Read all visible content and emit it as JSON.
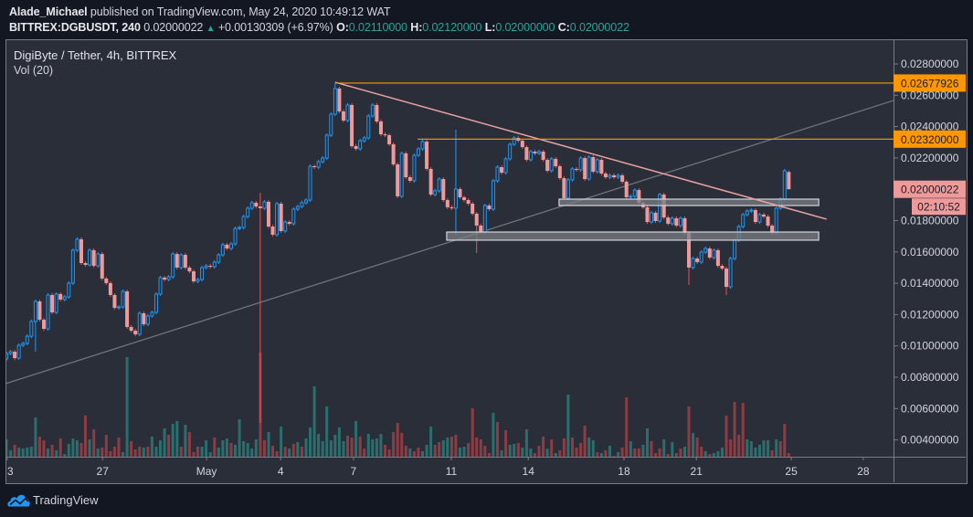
{
  "header": {
    "author": "Alade_Michael",
    "published": " published on TradingView.com, May 24, 2020 10:49:12 WAT",
    "symbol": "BITTREX:DGBUSDT, 240",
    "last": "0.02000022",
    "change_arrow": "▲",
    "change_icon": "triangle-up-icon",
    "change": "+0.00130309 (+6.97%)",
    "ohlc": [
      {
        "label": "O:",
        "value": "0.02110000"
      },
      {
        "label": "H:",
        "value": "0.02120000"
      },
      {
        "label": "L:",
        "value": "0.02000000"
      },
      {
        "label": "C:",
        "value": "0.02000022"
      }
    ]
  },
  "legend": {
    "title": "DigiByte / Tether, 4h, BITTREX",
    "volume": "Vol (20)"
  },
  "price_axis": {
    "ticks": [
      {
        "label": "0.02800000",
        "value": 0.028
      },
      {
        "label": "0.02600000",
        "value": 0.026
      },
      {
        "label": "0.02400000",
        "value": 0.024
      },
      {
        "label": "0.02200000",
        "value": 0.022
      },
      {
        "label": "0.01800000",
        "value": 0.018
      },
      {
        "label": "0.01600000",
        "value": 0.016
      },
      {
        "label": "0.01400000",
        "value": 0.014
      },
      {
        "label": "0.01200000",
        "value": 0.012
      },
      {
        "label": "0.01000000",
        "value": 0.01
      },
      {
        "label": "0.00800000",
        "value": 0.008
      },
      {
        "label": "0.00600000",
        "value": 0.006
      },
      {
        "label": "0.00400000",
        "value": 0.004
      }
    ]
  },
  "time_axis": {
    "ticks": [
      {
        "label": "3",
        "index": 0.2
      },
      {
        "label": "27",
        "index": 23.1
      },
      {
        "label": "May",
        "index": 48.1
      },
      {
        "label": "4",
        "index": 65.9
      },
      {
        "label": "7",
        "index": 83.4
      },
      {
        "label": "11",
        "index": 106.9
      },
      {
        "label": "14",
        "index": 125.4
      },
      {
        "label": "18",
        "index": 148.4
      },
      {
        "label": "21",
        "index": 165.8
      },
      {
        "label": "25",
        "index": 188.6
      },
      {
        "label": "28",
        "index": 205.9
      }
    ]
  },
  "price_tags": [
    {
      "label": "0.02677926",
      "price": 0.02677926,
      "bg": "#ff9800"
    },
    {
      "label": "0.02320000",
      "price": 0.0232,
      "bg": "#ff9800"
    },
    {
      "label": "0.02000022",
      "price": 0.02000022,
      "bg": "#ef9a9a"
    }
  ],
  "countdown": "02:10:52",
  "footer": {
    "brand": "TradingView",
    "logo_icon": "tradingview-cloud-logo-icon"
  },
  "colors": {
    "background": "#131722",
    "pane": "#2a2e39",
    "text": "#d1d4dc",
    "up": "#2196f3",
    "down_body": "#ef9a9a",
    "down_wick": "#ef5350",
    "volume_up": "#2a6f6e",
    "volume_down": "#8e3c43",
    "value_teal": "#26a69a",
    "level_line": "#ff9800",
    "resistance_trend": "#e8a1a1",
    "support_trend": "#6f727c",
    "zone_fill": "#7c7e84",
    "zone_border": "#d1d4dc"
  },
  "chart_data": {
    "type": "bar",
    "subtype": "candlestick",
    "title": "DigiByte / Tether, 4h, BITTREX",
    "symbol": "BITTREX:DGBUSDT",
    "interval": "240",
    "xlabel": "",
    "ylabel": "",
    "x_tick_labels": [
      "3",
      "27",
      "May",
      "4",
      "7",
      "11",
      "14",
      "18",
      "21",
      "25",
      "28"
    ],
    "y_tick_labels": [
      "0.02800000",
      "0.02600000",
      "0.02400000",
      "0.02200000",
      "0.01800000",
      "0.01600000",
      "0.01400000",
      "0.01200000",
      "0.01000000",
      "0.00800000",
      "0.00600000",
      "0.00400000"
    ],
    "ylim": [
      0.0029,
      0.0296
    ],
    "grid": false,
    "legend_position": "top-left",
    "first_open": 0.00917,
    "default_wick": 0.00012,
    "closes": [
      0.00952,
      0.00963,
      0.00922,
      0.01004,
      0.01016,
      0.01062,
      0.01156,
      0.01284,
      0.01167,
      0.01109,
      0.01325,
      0.01214,
      0.01331,
      0.01296,
      0.01313,
      0.01401,
      0.01611,
      0.01681,
      0.01529,
      0.01517,
      0.01611,
      0.01511,
      0.01587,
      0.0143,
      0.01401,
      0.01325,
      0.01243,
      0.01249,
      0.01348,
      0.01121,
      0.01097,
      0.01074,
      0.01208,
      0.01138,
      0.01191,
      0.01214,
      0.01331,
      0.01436,
      0.01424,
      0.01441,
      0.01587,
      0.015,
      0.01581,
      0.015,
      0.01476,
      0.01412,
      0.01424,
      0.015,
      0.01511,
      0.01506,
      0.01535,
      0.01581,
      0.01646,
      0.01622,
      0.01651,
      0.0175,
      0.01756,
      0.01826,
      0.01879,
      0.01914,
      0.0189,
      0.01879,
      0.0192,
      0.01762,
      0.0171,
      0.01908,
      0.01733,
      0.01791,
      0.0178,
      0.01873,
      0.0189,
      0.01914,
      0.01931,
      0.02147,
      0.02141,
      0.02176,
      0.02199,
      0.02345,
      0.02479,
      0.02643,
      0.02497,
      0.02439,
      0.02538,
      0.02275,
      0.02258,
      0.0231,
      0.02328,
      0.02468,
      0.02538,
      0.02433,
      0.02351,
      0.02345,
      0.02287,
      0.02159,
      0.01955,
      0.02229,
      0.02077,
      0.02054,
      0.02217,
      0.02258,
      0.02304,
      0.0213,
      0.01966,
      0.0199,
      0.02065,
      0.01931,
      0.01885,
      0.01879,
      0.02001,
      0.01949,
      0.01931,
      0.01908,
      0.01844,
      0.01768,
      0.01727,
      0.01896,
      0.01873,
      0.02054,
      0.02141,
      0.02106,
      0.02194,
      0.02287,
      0.02328,
      0.0231,
      0.02269,
      0.02188,
      0.0224,
      0.02229,
      0.0224,
      0.02188,
      0.02118,
      0.02194,
      0.02147,
      0.02071,
      0.01943,
      0.0206,
      0.0213,
      0.02124,
      0.02199,
      0.02065,
      0.02205,
      0.02112,
      0.02188,
      0.021,
      0.02077,
      0.02089,
      0.02077,
      0.02089,
      0.02048,
      0.01949,
      0.01955,
      0.01995,
      0.01914,
      0.01885,
      0.01791,
      0.0185,
      0.01797,
      0.01966,
      0.0182,
      0.0178,
      0.01815,
      0.01768,
      0.01815,
      0.01721,
      0.015,
      0.01558,
      0.01535,
      0.01599,
      0.01622,
      0.01564,
      0.01611,
      0.01511,
      0.01494,
      0.01377,
      0.01558,
      0.01675,
      0.01762,
      0.01838,
      0.01861,
      0.01867,
      0.01791,
      0.01838,
      0.01826,
      0.01768,
      0.01721,
      0.01879,
      0.01937,
      0.02118,
      0.02000022
    ],
    "wick_overrides": [
      {
        "index": 0,
        "low": 0.00905
      },
      {
        "index": 7,
        "low": 0.00963
      },
      {
        "index": 61,
        "high": 0.01978,
        "low": 0.00508
      },
      {
        "index": 79,
        "high": 0.02678
      },
      {
        "index": 108,
        "high": 0.0238,
        "low": 0.0171
      },
      {
        "index": 113,
        "low": 0.01593
      },
      {
        "index": 164,
        "low": 0.01389
      },
      {
        "index": 173,
        "low": 0.01325
      },
      {
        "index": 188,
        "open": 0.0211,
        "high": 0.0212,
        "low": 0.02
      }
    ],
    "last_bar": {
      "open": 0.0211,
      "high": 0.0212,
      "low": 0.02,
      "close": 0.02000022,
      "change": 0.00130309,
      "change_pct": 6.97
    },
    "volume_label": "Vol (20)",
    "volume": [
      19,
      7,
      13,
      10,
      9,
      10,
      11,
      43,
      22,
      18,
      9,
      13,
      7,
      20,
      3,
      14,
      20,
      18,
      15,
      45,
      19,
      30,
      9,
      10,
      24,
      6,
      11,
      21,
      5,
      109,
      17,
      8,
      11,
      10,
      11,
      22,
      11,
      18,
      31,
      24,
      36,
      39,
      11,
      35,
      27,
      5,
      11,
      11,
      18,
      5,
      21,
      10,
      18,
      20,
      15,
      13,
      41,
      17,
      15,
      9,
      19,
      114,
      18,
      27,
      12,
      6,
      33,
      11,
      9,
      14,
      16,
      11,
      20,
      32,
      77,
      25,
      17,
      55,
      18,
      24,
      32,
      17,
      23,
      21,
      39,
      22,
      9,
      25,
      19,
      20,
      25,
      13,
      8,
      27,
      37,
      26,
      12,
      9,
      6,
      10,
      6,
      13,
      33,
      13,
      16,
      18,
      21,
      22,
      24,
      10,
      11,
      15,
      53,
      21,
      19,
      12,
      4,
      48,
      38,
      7,
      29,
      13,
      14,
      15,
      10,
      30,
      9,
      4,
      12,
      22,
      9,
      19,
      4,
      7,
      20,
      68,
      21,
      10,
      15,
      34,
      21,
      18,
      5,
      4,
      7,
      12,
      1,
      5,
      10,
      65,
      17,
      9,
      9,
      13,
      31,
      17,
      4,
      9,
      19,
      3,
      16,
      4,
      9,
      11,
      55,
      26,
      21,
      11,
      6,
      3,
      4,
      6,
      10,
      45,
      19,
      60,
      24,
      59,
      19,
      17,
      10,
      13,
      18,
      18,
      7,
      19,
      17,
      36,
      4
    ],
    "volume_dir": "uuduuuuuddududuuuuddududdddduuddduduuuuduududdduuuduuuduuuuuudduddudududuuuuuuuuuuddudduuuuddddddudduuudduudduuddddddududuuduuudddududdudddduududududdudduudddududdududduduuuddddduuuuuududdduuud",
    "annotations": {
      "horizontal_levels": [
        {
          "price": 0.02677926,
          "from_index": 79
        },
        {
          "price": 0.0232,
          "from_index": 98.8
        }
      ],
      "trendlines": [
        {
          "name": "descending-resistance",
          "from": [
            79,
            0.02683
          ],
          "to": [
            197.1,
            0.01809
          ]
        },
        {
          "name": "ascending-support",
          "from": [
            -0.2,
            0.00759
          ],
          "to": [
            213.2,
            0.02567
          ]
        }
      ],
      "zones": [
        {
          "from_index": 132.8,
          "to_index": 195.2,
          "top": 0.01937,
          "bottom": 0.01896
        },
        {
          "from_index": 105.8,
          "to_index": 195.2,
          "top": 0.01727,
          "bottom": 0.01675
        }
      ]
    }
  }
}
